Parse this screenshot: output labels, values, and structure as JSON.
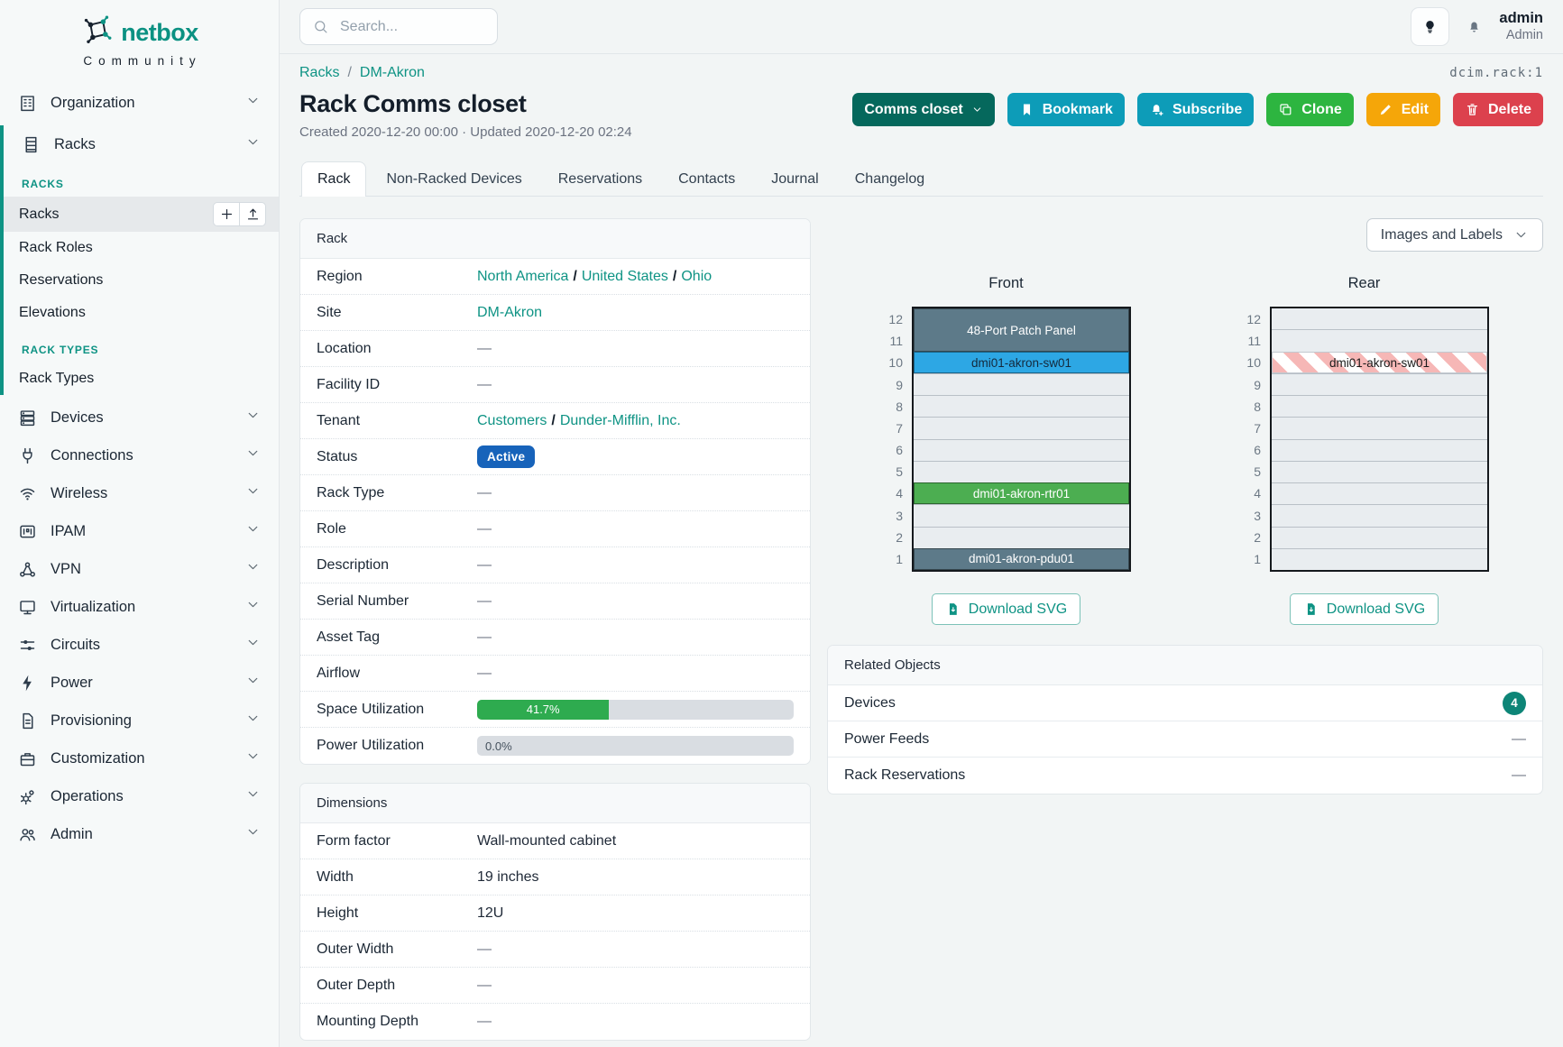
{
  "sidebar": {
    "logo_text": "netbox",
    "logo_sub": "Community",
    "groups": [
      {
        "label": "Organization",
        "icon": "building"
      },
      {
        "label": "Racks",
        "icon": "rack",
        "expanded": true
      },
      {
        "label": "Devices",
        "icon": "server"
      },
      {
        "label": "Connections",
        "icon": "plug"
      },
      {
        "label": "Wireless",
        "icon": "wifi"
      },
      {
        "label": "IPAM",
        "icon": "ip-grid"
      },
      {
        "label": "VPN",
        "icon": "network"
      },
      {
        "label": "Virtualization",
        "icon": "monitor"
      },
      {
        "label": "Circuits",
        "icon": "sliders"
      },
      {
        "label": "Power",
        "icon": "bolt"
      },
      {
        "label": "Provisioning",
        "icon": "document"
      },
      {
        "label": "Customization",
        "icon": "briefcase"
      },
      {
        "label": "Operations",
        "icon": "gears"
      },
      {
        "label": "Admin",
        "icon": "users"
      }
    ],
    "racks_menu": {
      "section1": "RACKS",
      "items1": [
        "Racks",
        "Rack Roles",
        "Reservations",
        "Elevations"
      ],
      "active_item": "Racks",
      "section2": "RACK TYPES",
      "items2": [
        "Rack Types"
      ]
    }
  },
  "topbar": {
    "search_placeholder": "Search...",
    "user_name": "admin",
    "user_role": "Admin"
  },
  "header": {
    "breadcrumb": [
      "Racks",
      "DM-Akron"
    ],
    "breadcrumb_sep": "/",
    "object_id": "dcim.rack:1",
    "title": "Rack Comms closet",
    "meta": "Created 2020-12-20 00:00 · Updated 2020-12-20 02:24",
    "actions": {
      "name_dropdown": "Comms closet",
      "bookmark": "Bookmark",
      "subscribe": "Subscribe",
      "clone": "Clone",
      "edit": "Edit",
      "delete": "Delete"
    }
  },
  "tabs": [
    "Rack",
    "Non-Racked Devices",
    "Reservations",
    "Contacts",
    "Journal",
    "Changelog"
  ],
  "active_tab": "Rack",
  "rack_panel": {
    "title": "Rack",
    "region_label": "Region",
    "region_links": [
      "North America",
      "United States",
      "Ohio"
    ],
    "site_label": "Site",
    "site_link": "DM-Akron",
    "location_label": "Location",
    "location_value": "—",
    "facility_label": "Facility ID",
    "facility_value": "—",
    "tenant_label": "Tenant",
    "tenant_links": [
      "Customers",
      "Dunder-Mifflin, Inc."
    ],
    "status_label": "Status",
    "status_value": "Active",
    "rack_type_label": "Rack Type",
    "rack_type_value": "—",
    "role_label": "Role",
    "role_value": "—",
    "description_label": "Description",
    "description_value": "—",
    "serial_label": "Serial Number",
    "serial_value": "—",
    "asset_label": "Asset Tag",
    "asset_value": "—",
    "airflow_label": "Airflow",
    "airflow_value": "—",
    "space_label": "Space Utilization",
    "space_pct": "41.7%",
    "space_pct_value": 41.7,
    "power_label": "Power Utilization",
    "power_pct": "0.0%",
    "power_pct_value": 0
  },
  "dimensions_panel": {
    "title": "Dimensions",
    "form_factor_label": "Form factor",
    "form_factor_value": "Wall-mounted cabinet",
    "width_label": "Width",
    "width_value": "19 inches",
    "height_label": "Height",
    "height_value": "12U",
    "outer_width_label": "Outer Width",
    "outer_width_value": "—",
    "outer_depth_label": "Outer Depth",
    "outer_depth_value": "—",
    "mounting_depth_label": "Mounting Depth",
    "mounting_depth_value": "—"
  },
  "elevation": {
    "view_toggle_label": "Images and Labels",
    "download_label": "Download SVG",
    "units": 12,
    "views": [
      {
        "title": "Front",
        "devices": [
          {
            "name": "48-Port Patch Panel",
            "top_unit": 12,
            "span": 2,
            "bg": "#5d7a89",
            "fg": "#ffffff"
          },
          {
            "name": "dmi01-akron-sw01",
            "top_unit": 10,
            "span": 1,
            "bg": "#2da7e4",
            "fg": "#14293c"
          },
          {
            "name": "dmi01-akron-rtr01",
            "top_unit": 4,
            "span": 1,
            "bg": "#4cae51",
            "fg": "#ffffff"
          },
          {
            "name": "dmi01-akron-pdu01",
            "top_unit": 1,
            "span": 1,
            "bg": "#5d7a89",
            "fg": "#ffffff"
          }
        ]
      },
      {
        "title": "Rear",
        "devices": [
          {
            "name": "dmi01-akron-sw01",
            "top_unit": 10,
            "span": 1,
            "striped": true,
            "fg": "#1a1a1a"
          }
        ]
      }
    ]
  },
  "related_objects": {
    "title": "Related Objects",
    "rows": [
      {
        "label": "Devices",
        "count": "4"
      },
      {
        "label": "Power Feeds",
        "value": "—"
      },
      {
        "label": "Rack Reservations",
        "value": "—"
      }
    ]
  },
  "colors": {
    "accent_teal": "#0e9384",
    "status_active_badge": "#1763ba",
    "progress_green": "#2eab4f",
    "count_badge": "#0d8577",
    "button_name": "#05685c",
    "button_info": "#0d9cb8",
    "button_clone": "#2db540",
    "button_edit": "#f5a609",
    "button_delete": "#dc414d",
    "device_slate": "#5d7a89",
    "device_blue": "#2da7e4",
    "device_green": "#4cae51"
  }
}
